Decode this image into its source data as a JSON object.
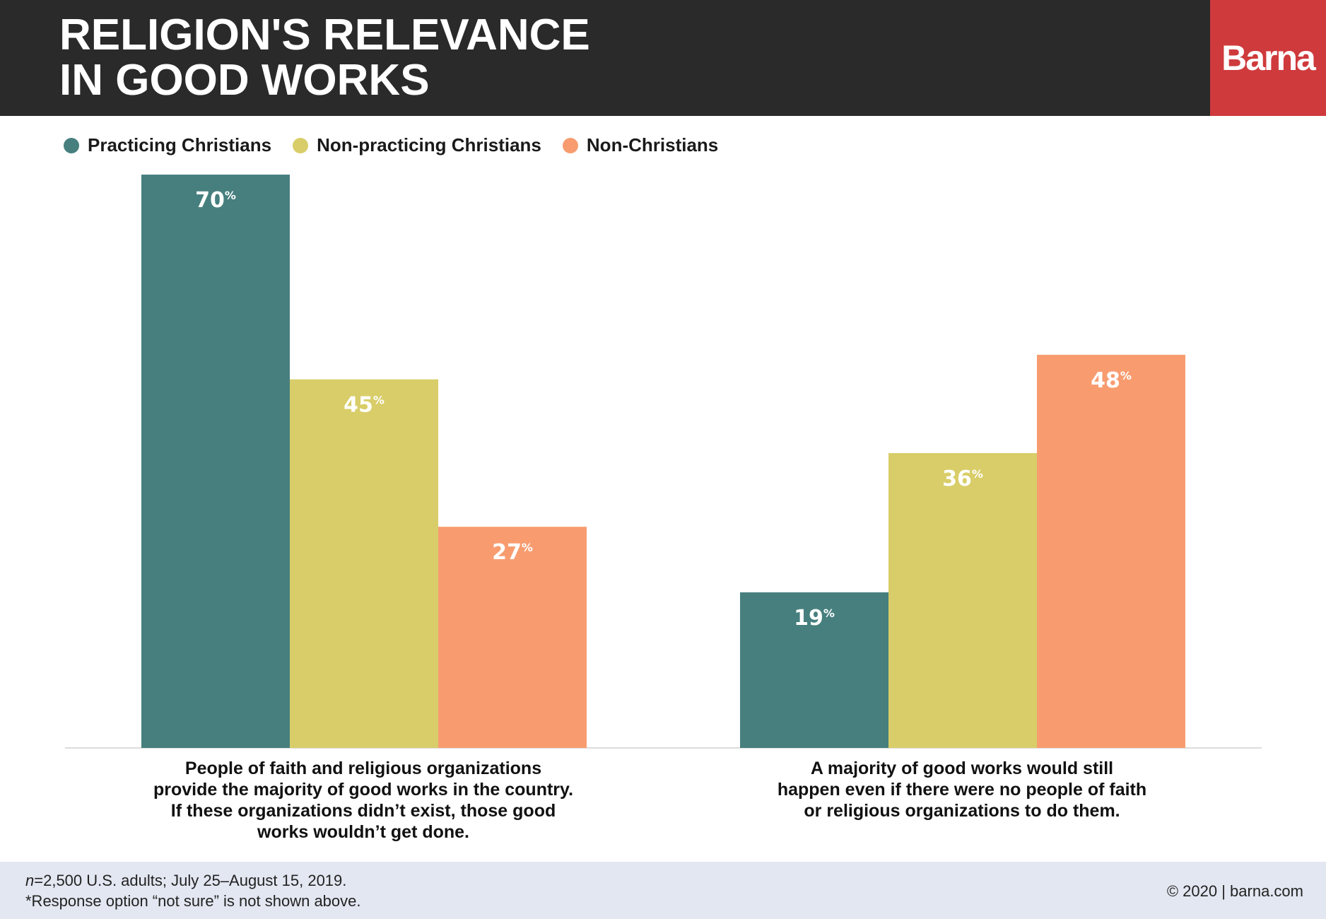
{
  "header": {
    "title_line1": "RELIGION'S RELEVANCE",
    "title_line2": "IN GOOD WORKS",
    "logo_text": "Barna",
    "background": "#2a2a2a",
    "logo_color": "#cf3a3c"
  },
  "chart_data": {
    "type": "bar",
    "title": "RELIGION'S RELEVANCE IN GOOD WORKS",
    "categories": [
      "People of faith and religious organizations provide the majority of good works in the country. If these organizations didn’t exist, those good works wouldn’t get done.",
      "A majority of good works would still happen even if there were no people of faith or religious organizations to do them."
    ],
    "category_lines": [
      [
        "People of faith and religious organizations",
        "provide the majority of good works in the country.",
        "If these organizations didn’t exist, those good",
        "works wouldn’t get done."
      ],
      [
        "A majority of good works would still",
        "happen even if there were no people of faith",
        "or religious organizations to do them."
      ]
    ],
    "series": [
      {
        "name": "Practicing Christians",
        "values": [
          70,
          19
        ],
        "color": "#467f7e"
      },
      {
        "name": "Non-practicing Christians",
        "values": [
          45,
          36
        ],
        "color": "#d8cd68"
      },
      {
        "name": "Non-Christians",
        "values": [
          27,
          48
        ],
        "color": "#f89c70"
      }
    ],
    "value_suffix": "%",
    "ylim": [
      0,
      70
    ],
    "grid": false,
    "legend_position": "top-left",
    "xlabel": "",
    "ylabel": ""
  },
  "footer": {
    "note_n": "n",
    "note_rest": "=2,500 U.S. adults; July 25–August 15, 2019.",
    "note2": "*Response option “not sure” is not shown above.",
    "copyright": "© 2020 | barna.com"
  }
}
